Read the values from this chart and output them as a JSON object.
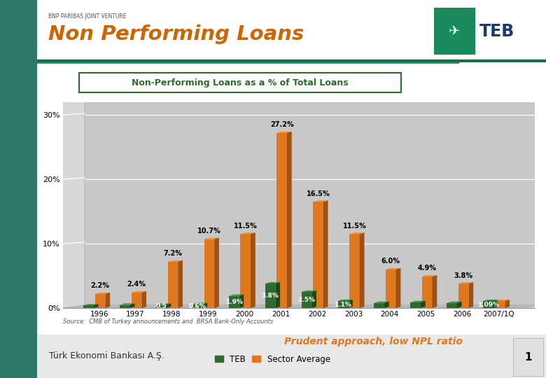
{
  "title": "Non Performing Loans",
  "subtitle": "BNP PARIBAS JOINT VENTURE",
  "box_label": "Non-Performing Loans as a % of Total Loans",
  "years": [
    "1996",
    "1997",
    "1998",
    "1999",
    "2000",
    "2001",
    "2002",
    "2003",
    "2004",
    "2005",
    "2006",
    "2007/1Q"
  ],
  "teb_values": [
    0.4,
    0.5,
    0.5,
    0.6,
    1.9,
    3.8,
    2.5,
    1.1,
    0.8,
    0.9,
    0.8,
    1.09
  ],
  "sector_values": [
    2.2,
    2.4,
    7.2,
    10.7,
    11.5,
    27.2,
    16.5,
    11.5,
    6.0,
    4.9,
    3.8,
    1.09
  ],
  "teb_labels_val": [
    "",
    "",
    "0.5",
    "0.6%",
    "1.9%",
    "3.8%",
    "2.5%",
    "1.1%",
    "",
    "",
    "",
    "1.09%"
  ],
  "teb_label_inside": [
    false,
    false,
    true,
    true,
    true,
    true,
    true,
    true,
    false,
    false,
    false,
    true
  ],
  "sector_labels_val": [
    "2.2%",
    "2.4%",
    "7.2%",
    "10.7%",
    "11.5%",
    "27.2%",
    "16.5%",
    "11.5%",
    "6.0%",
    "4.9%",
    "3.8%",
    ""
  ],
  "teb_color": "#2d6a2d",
  "teb_top_color": "#3d8a3d",
  "teb_side_color": "#1a4a1a",
  "sector_color": "#e07820",
  "sector_top_color": "#f09030",
  "sector_side_color": "#a05010",
  "floor_color": "#b8b8b8",
  "wall_color": "#d0d0d0",
  "chart_bg": "#c8c8c8",
  "ylim": [
    0,
    32
  ],
  "yticks": [
    0,
    10,
    20,
    30
  ],
  "ytick_labels": [
    "0%",
    "10%",
    "20%",
    "30%"
  ],
  "source_text": "Source:  CMB of Turkey announcements and  BRSA Bank-Only Accounts",
  "prudent_text": "Prudent approach, low NPL ratio",
  "bottom_left": "Türk Ekonomi Bankası A.Ş.",
  "page_num": "1",
  "slide_bg": "#ffffff",
  "left_bar_color": "#2d7a6a",
  "separator_color": "#1a6b4a",
  "bottom_bar_color": "#e8e8e8"
}
